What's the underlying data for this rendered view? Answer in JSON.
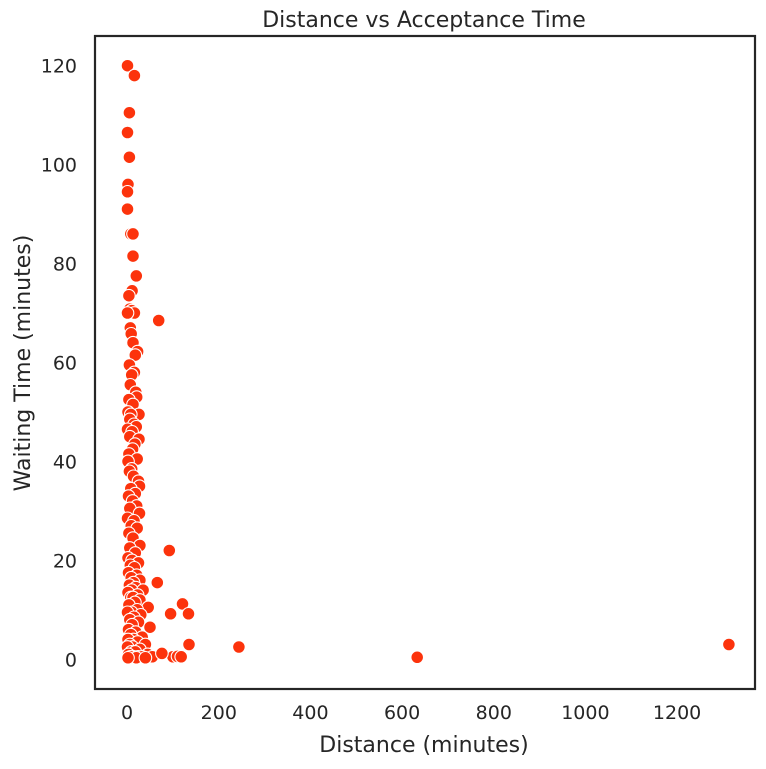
{
  "chart_data": {
    "type": "scatter",
    "title": "Distance vs Acceptance Time",
    "xlabel": "Distance (minutes)",
    "ylabel": "Waiting Time (minutes)",
    "xlim": [
      -70,
      1370
    ],
    "ylim": [
      -6,
      126
    ],
    "xticks": [
      0,
      200,
      400,
      600,
      800,
      1000,
      1200
    ],
    "yticks": [
      0,
      20,
      40,
      60,
      80,
      100,
      120
    ],
    "grid": false,
    "legend": "none",
    "marker_color": "#fc330c",
    "marker_edge_color": "#ffffff",
    "series": [
      {
        "points": [
          [
            1,
            120
          ],
          [
            16,
            118
          ],
          [
            5,
            110.5
          ],
          [
            1,
            106.5
          ],
          [
            5,
            101.5
          ],
          [
            2,
            96
          ],
          [
            1,
            94.5
          ],
          [
            1,
            91
          ],
          [
            8,
            86
          ],
          [
            13,
            86
          ],
          [
            13,
            81.5
          ],
          [
            20,
            77.5
          ],
          [
            11,
            74.5
          ],
          [
            4,
            73.5
          ],
          [
            6,
            70.8
          ],
          [
            10,
            70.5
          ],
          [
            16,
            70
          ],
          [
            1,
            70
          ],
          [
            69,
            68.5
          ],
          [
            7,
            67
          ],
          [
            9,
            65.8
          ],
          [
            13,
            64
          ],
          [
            23,
            62.2
          ],
          [
            18,
            61.5
          ],
          [
            5,
            59.5
          ],
          [
            16,
            58
          ],
          [
            10,
            57.5
          ],
          [
            7,
            55.5
          ],
          [
            19,
            54
          ],
          [
            21,
            53
          ],
          [
            4,
            52.5
          ],
          [
            13,
            51.5
          ],
          [
            26,
            49.5
          ],
          [
            2,
            50
          ],
          [
            8,
            49.5
          ],
          [
            6,
            48.5
          ],
          [
            15,
            47.5
          ],
          [
            20,
            47
          ],
          [
            1,
            46.5
          ],
          [
            11,
            46
          ],
          [
            6,
            45
          ],
          [
            26,
            44.5
          ],
          [
            17,
            43.5
          ],
          [
            12,
            42.5
          ],
          [
            4,
            41.5
          ],
          [
            22,
            40.5
          ],
          [
            2,
            40
          ],
          [
            10,
            38.5
          ],
          [
            5,
            38
          ],
          [
            14,
            37
          ],
          [
            25,
            36
          ],
          [
            27,
            35
          ],
          [
            8,
            34.5
          ],
          [
            18,
            33.5
          ],
          [
            3,
            33
          ],
          [
            12,
            32
          ],
          [
            21,
            31
          ],
          [
            6,
            30.5
          ],
          [
            27,
            29.5
          ],
          [
            1,
            28.5
          ],
          [
            15,
            28
          ],
          [
            9,
            27
          ],
          [
            22,
            26.5
          ],
          [
            4,
            25.5
          ],
          [
            13,
            24.5
          ],
          [
            28,
            23
          ],
          [
            6,
            22.5
          ],
          [
            18,
            21.5
          ],
          [
            2,
            20.5
          ],
          [
            11,
            20
          ],
          [
            25,
            19.5
          ],
          [
            7,
            19
          ],
          [
            16,
            18.5
          ],
          [
            3,
            17.5
          ],
          [
            21,
            17
          ],
          [
            9,
            16.5
          ],
          [
            28,
            16
          ],
          [
            14,
            15.5
          ],
          [
            5,
            15
          ],
          [
            19,
            14.5
          ],
          [
            10,
            14
          ],
          [
            35,
            14
          ],
          [
            2,
            13.5
          ],
          [
            23,
            13
          ],
          [
            8,
            12.5
          ],
          [
            13,
            12.5
          ],
          [
            28,
            12
          ],
          [
            17,
            11.5
          ],
          [
            4,
            11
          ],
          [
            46,
            10.5
          ],
          [
            22,
            10
          ],
          [
            10,
            9.5
          ],
          [
            1,
            9.5
          ],
          [
            30,
            9
          ],
          [
            15,
            8.5
          ],
          [
            6,
            8
          ],
          [
            25,
            7.5
          ],
          [
            11,
            7
          ],
          [
            50,
            6.5
          ],
          [
            3,
            6
          ],
          [
            19,
            5.5
          ],
          [
            8,
            5
          ],
          [
            33,
            4.5
          ],
          [
            14,
            4
          ],
          [
            2,
            4
          ],
          [
            23,
            3.5
          ],
          [
            6,
            3
          ],
          [
            40,
            3
          ],
          [
            12,
            2.5
          ],
          [
            1,
            2.5
          ],
          [
            28,
            2
          ],
          [
            9,
            1.5
          ],
          [
            18,
            1.5
          ],
          [
            3,
            1
          ],
          [
            45,
            1
          ],
          [
            14,
            0.5
          ],
          [
            24,
            0.5
          ],
          [
            7,
            0.5
          ],
          [
            33,
            0.5
          ],
          [
            55,
            0.5
          ],
          [
            20,
            0.3
          ],
          [
            2,
            0.3
          ],
          [
            40,
            0.3
          ],
          [
            100,
            0.5
          ],
          [
            110,
            0.6
          ],
          [
            118,
            0.5
          ],
          [
            76,
            1.2
          ],
          [
            92,
            22
          ],
          [
            66,
            15.5
          ],
          [
            121,
            11.2
          ],
          [
            134,
            9.2
          ],
          [
            95,
            9.2
          ],
          [
            135,
            3
          ],
          [
            244,
            2.5
          ],
          [
            633,
            0.4
          ],
          [
            1313,
            3
          ]
        ]
      }
    ]
  }
}
